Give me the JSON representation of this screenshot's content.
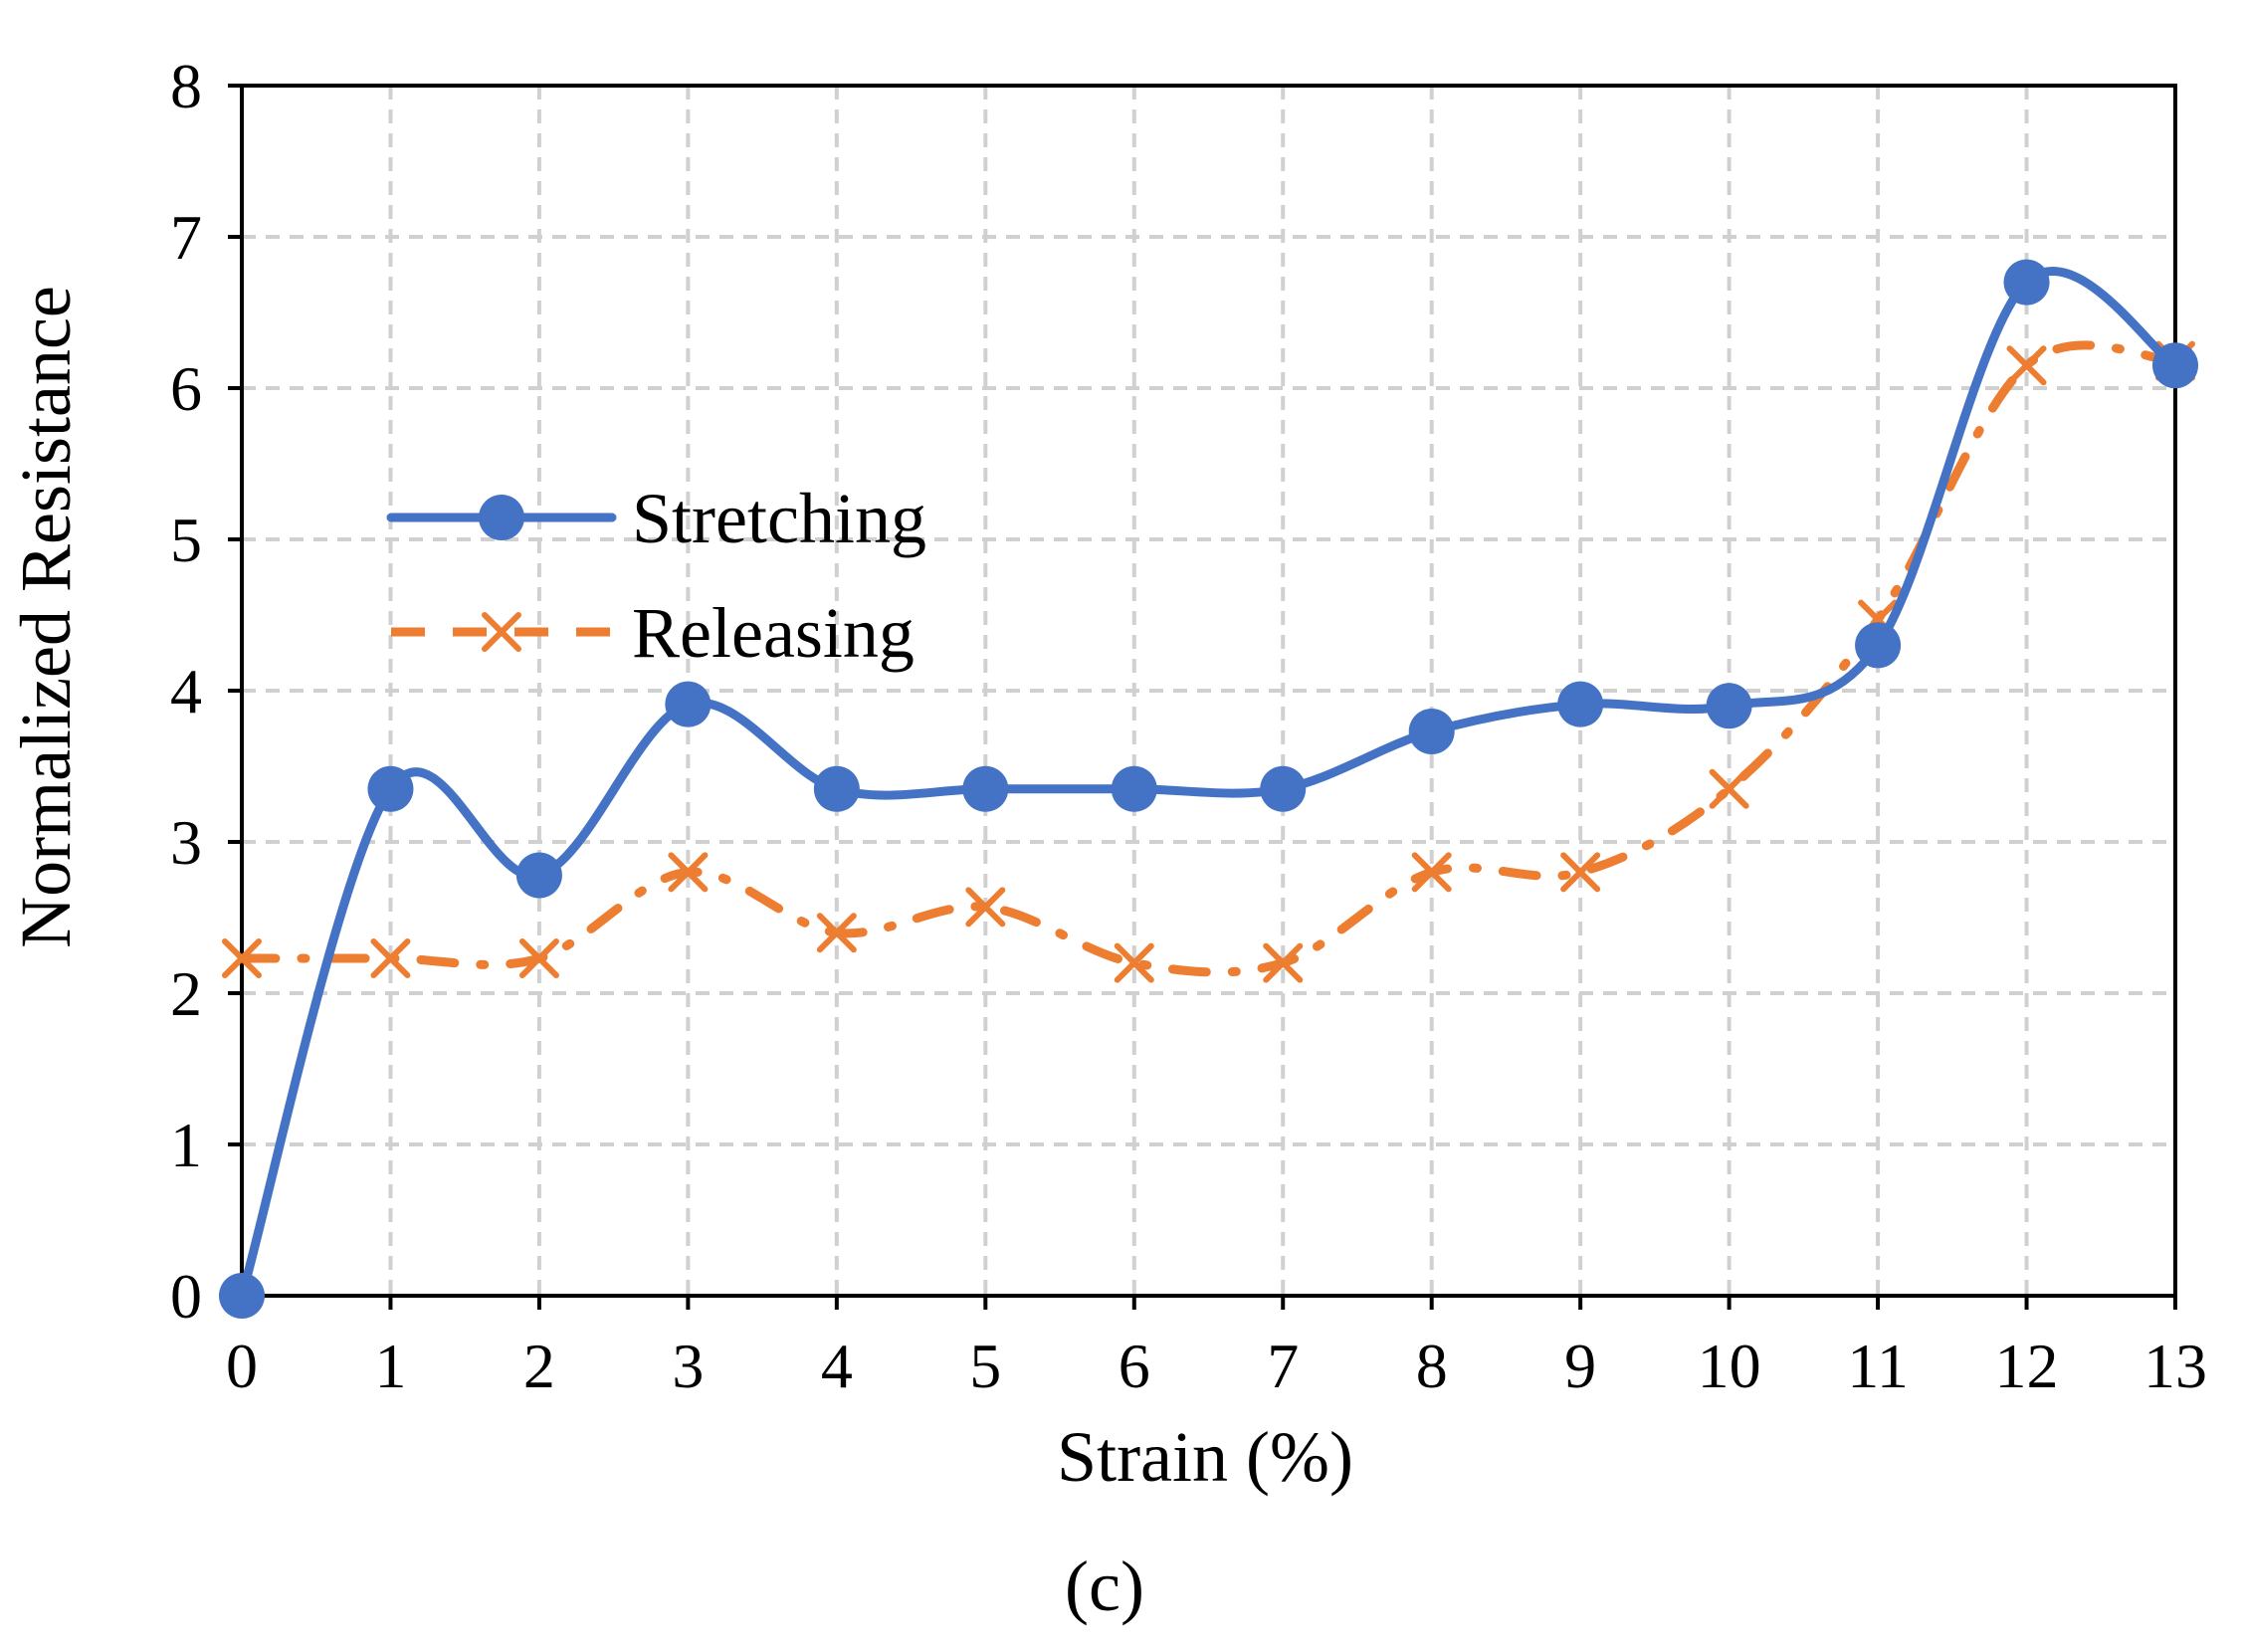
{
  "chart_data": {
    "type": "line",
    "title": "",
    "xlabel": "Strain (%)",
    "ylabel": "Normalized Resistance",
    "panel_label": "(c)",
    "x": [
      0,
      1,
      2,
      3,
      4,
      5,
      6,
      7,
      8,
      9,
      10,
      11,
      12,
      13
    ],
    "xlim": [
      0,
      13
    ],
    "ylim": [
      0,
      8
    ],
    "xticks": [
      0,
      1,
      2,
      3,
      4,
      5,
      6,
      7,
      8,
      9,
      10,
      11,
      12,
      13
    ],
    "yticks": [
      0,
      1,
      2,
      3,
      4,
      5,
      6,
      7,
      8
    ],
    "grid": true,
    "legend_position": "left-middle",
    "series": [
      {
        "name": "Stretching",
        "color": "#4472C4",
        "marker": "circle",
        "line_style": "solid",
        "smooth": true,
        "values": [
          0,
          3.35,
          2.78,
          3.91,
          3.35,
          3.35,
          3.35,
          3.35,
          3.73,
          3.91,
          3.9,
          4.3,
          6.7,
          6.15
        ]
      },
      {
        "name": "Releasing",
        "color": "#ED7D31",
        "marker": "x",
        "line_style": "dash-dot",
        "smooth": true,
        "values": [
          2.23,
          2.23,
          2.23,
          2.8,
          2.4,
          2.57,
          2.2,
          2.2,
          2.8,
          2.8,
          3.35,
          4.47,
          6.15,
          6.18
        ]
      }
    ]
  }
}
